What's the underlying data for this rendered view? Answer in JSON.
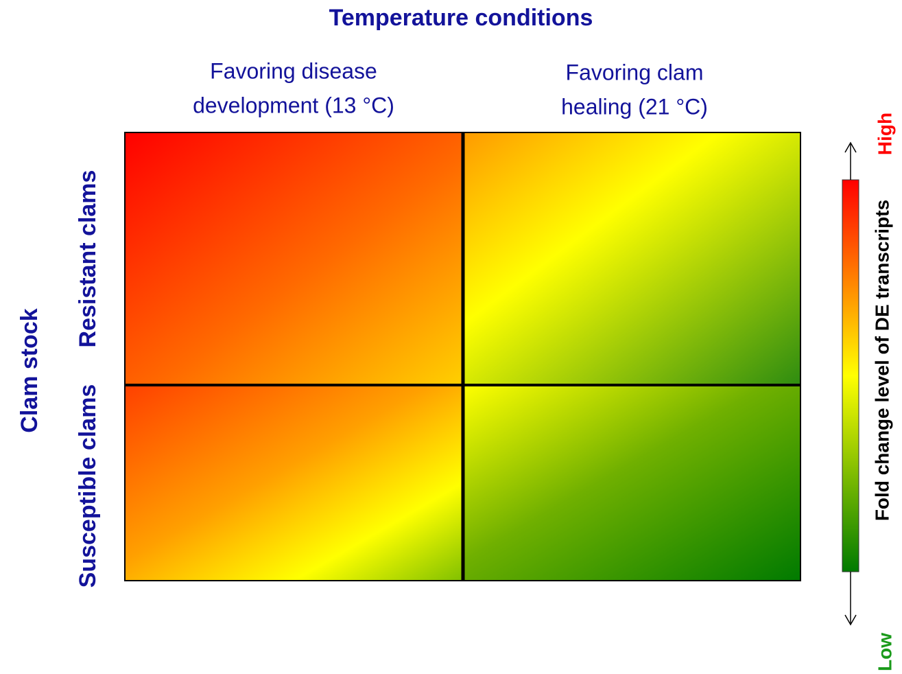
{
  "title": "Temperature conditions",
  "columns": [
    {
      "lines": [
        "Favoring disease",
        "development (13 °C)"
      ]
    },
    {
      "lines": [
        "Favoring clam",
        "healing (21 °C)"
      ]
    }
  ],
  "row_axis_label": "Clam stock",
  "rows": [
    "Resistant clams",
    "Susceptible clams"
  ],
  "legend": {
    "label": "Fold change level of DE transcripts",
    "high": "High",
    "low": "Low"
  }
}
